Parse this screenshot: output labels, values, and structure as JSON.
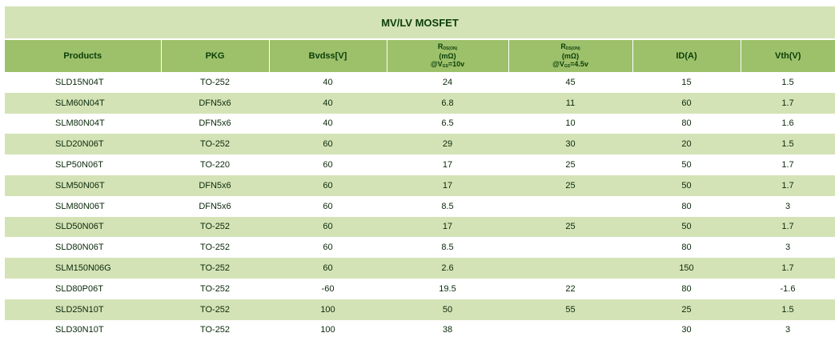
{
  "table_title": "MV/LV MOSFET",
  "headers": {
    "products": "Products",
    "pkg": "PKG",
    "bvdss": "Bvdss[V]",
    "rds10": {
      "r": "R",
      "sub": "DS(ON)",
      "unit": "(mΩ)",
      "cond_a": "@V",
      "cond_sub": "GS",
      "cond_b": "=10v"
    },
    "rds45": {
      "r": "R",
      "sub": "DS(ON)",
      "unit": "(mΩ)",
      "cond_a": "@V",
      "cond_sub": "GS",
      "cond_b": "=4.5v"
    },
    "id": "ID(A)",
    "vth": "Vth(V)"
  },
  "rows": [
    {
      "product": "SLD15N04T",
      "pkg": "TO-252",
      "bvdss": "40",
      "rds10": "24",
      "rds45": "45",
      "id": "15",
      "vth": "1.5"
    },
    {
      "product": "SLM60N04T",
      "pkg": "DFN5x6",
      "bvdss": "40",
      "rds10": "6.8",
      "rds45": "11",
      "id": "60",
      "vth": "1.7"
    },
    {
      "product": "SLM80N04T",
      "pkg": "DFN5x6",
      "bvdss": "40",
      "rds10": "6.5",
      "rds45": "10",
      "id": "80",
      "vth": "1.6"
    },
    {
      "product": "SLD20N06T",
      "pkg": "TO-252",
      "bvdss": "60",
      "rds10": "29",
      "rds45": "30",
      "id": "20",
      "vth": "1.5"
    },
    {
      "product": "SLP50N06T",
      "pkg": "TO-220",
      "bvdss": "60",
      "rds10": "17",
      "rds45": "25",
      "id": "50",
      "vth": "1.7"
    },
    {
      "product": "SLM50N06T",
      "pkg": "DFN5x6",
      "bvdss": "60",
      "rds10": "17",
      "rds45": "25",
      "id": "50",
      "vth": "1.7"
    },
    {
      "product": "SLM80N06T",
      "pkg": "DFN5x6",
      "bvdss": "60",
      "rds10": "8.5",
      "rds45": "",
      "id": "80",
      "vth": "3"
    },
    {
      "product": "SLD50N06T",
      "pkg": "TO-252",
      "bvdss": "60",
      "rds10": "17",
      "rds45": "25",
      "id": "50",
      "vth": "1.7"
    },
    {
      "product": "SLD80N06T",
      "pkg": "TO-252",
      "bvdss": "60",
      "rds10": "8.5",
      "rds45": "",
      "id": "80",
      "vth": "3"
    },
    {
      "product": "SLM150N06G",
      "pkg": "TO-252",
      "bvdss": "60",
      "rds10": "2.6",
      "rds45": "",
      "id": "150",
      "vth": "1.7"
    },
    {
      "product": "SLD80P06T",
      "pkg": "TO-252",
      "bvdss": "-60",
      "rds10": "19.5",
      "rds45": "22",
      "id": "80",
      "vth": "-1.6"
    },
    {
      "product": "SLD25N10T",
      "pkg": "TO-252",
      "bvdss": "100",
      "rds10": "50",
      "rds45": "55",
      "id": "25",
      "vth": "1.5"
    },
    {
      "product": "SLD30N10T",
      "pkg": "TO-252",
      "bvdss": "100",
      "rds10": "38",
      "rds45": "",
      "id": "30",
      "vth": "3"
    }
  ]
}
